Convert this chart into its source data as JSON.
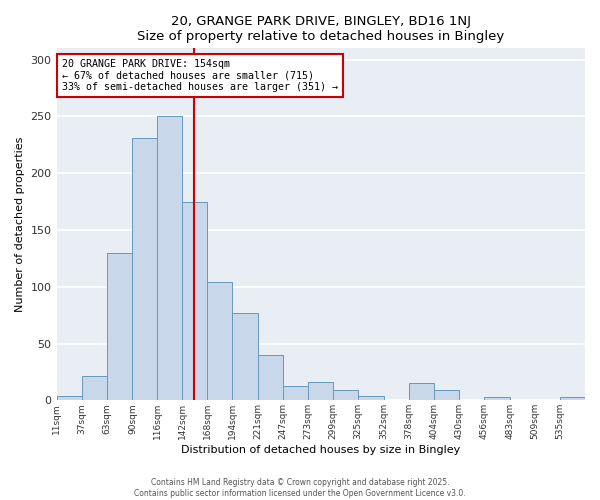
{
  "title": "20, GRANGE PARK DRIVE, BINGLEY, BD16 1NJ",
  "subtitle": "Size of property relative to detached houses in Bingley",
  "xlabel": "Distribution of detached houses by size in Bingley",
  "ylabel": "Number of detached properties",
  "bin_labels": [
    "11sqm",
    "37sqm",
    "63sqm",
    "90sqm",
    "116sqm",
    "142sqm",
    "168sqm",
    "194sqm",
    "221sqm",
    "247sqm",
    "273sqm",
    "299sqm",
    "325sqm",
    "352sqm",
    "378sqm",
    "404sqm",
    "430sqm",
    "456sqm",
    "483sqm",
    "509sqm",
    "535sqm"
  ],
  "bin_edges": [
    11,
    37,
    63,
    90,
    116,
    142,
    168,
    194,
    221,
    247,
    273,
    299,
    325,
    352,
    378,
    404,
    430,
    456,
    483,
    509,
    535,
    561
  ],
  "bar_heights": [
    4,
    21,
    130,
    231,
    250,
    175,
    104,
    77,
    40,
    13,
    16,
    9,
    4,
    0,
    15,
    9,
    0,
    3,
    0,
    0,
    3
  ],
  "bar_fill_color": "#c8d8ea",
  "bar_edge_color": "#6699bb",
  "vline_x": 154,
  "vline_color": "#cc0000",
  "ylim": [
    0,
    310
  ],
  "yticks": [
    0,
    50,
    100,
    150,
    200,
    250,
    300
  ],
  "bg_color": "#ffffff",
  "plot_bg_color": "#e8eef4",
  "grid_color": "#ffffff",
  "annotation_title": "20 GRANGE PARK DRIVE: 154sqm",
  "annotation_line1": "← 67% of detached houses are smaller (715)",
  "annotation_line2": "33% of semi-detached houses are larger (351) →",
  "annotation_box_color": "#cc0000",
  "footer1": "Contains HM Land Registry data © Crown copyright and database right 2025.",
  "footer2": "Contains public sector information licensed under the Open Government Licence v3.0."
}
